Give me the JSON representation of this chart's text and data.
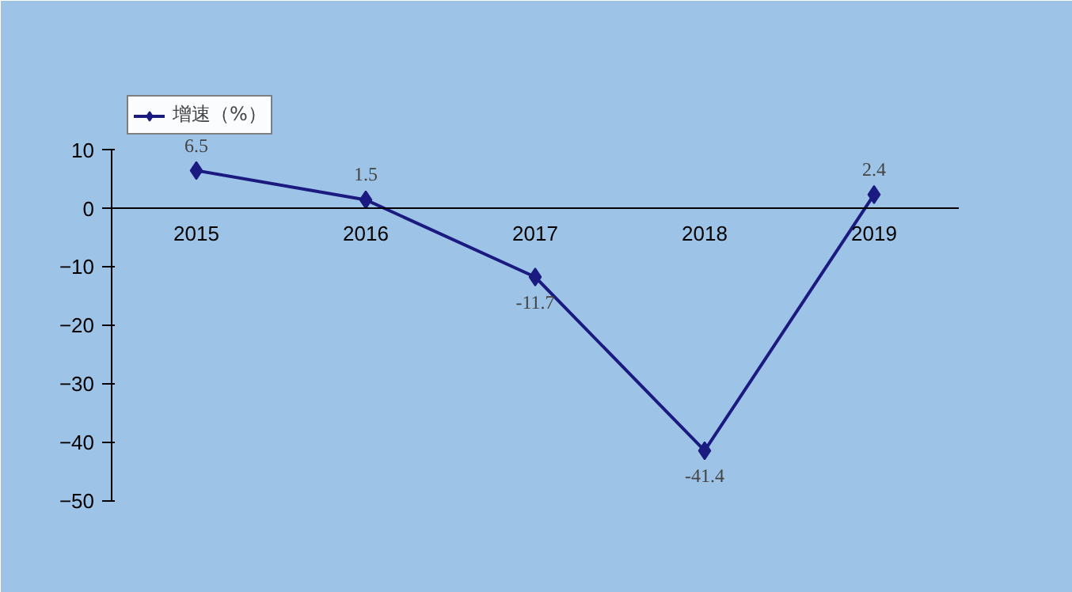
{
  "chart_data": {
    "type": "line",
    "categories": [
      "2015",
      "2016",
      "2017",
      "2018",
      "2019"
    ],
    "series": [
      {
        "name": "增速（%）",
        "color": "#1a1a80",
        "values": [
          6.5,
          1.5,
          -11.7,
          -41.4,
          2.4
        ]
      }
    ],
    "ylim": [
      -50,
      10
    ],
    "yticks": [
      -50,
      -40,
      -30,
      -20,
      -10,
      0,
      10
    ],
    "grid": false,
    "legend": "top left",
    "marker": "diamond",
    "line_style": "solid",
    "data_labels": true
  }
}
